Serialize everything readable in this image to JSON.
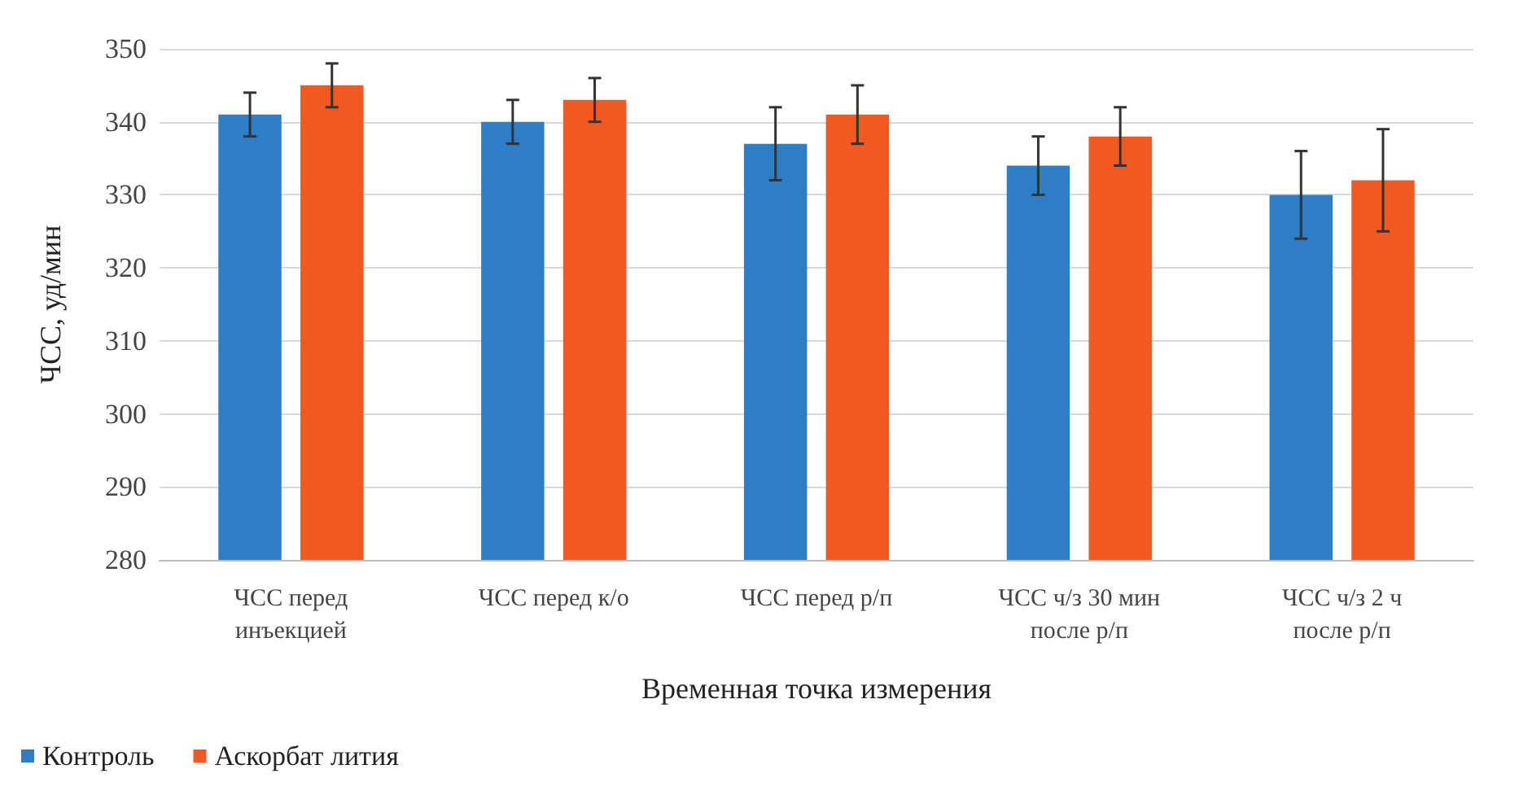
{
  "chart_data": {
    "type": "bar",
    "xlabel": "Временная точка измерения",
    "ylabel": "ЧСС, уд/мин",
    "categories": [
      "ЧСС перед инъекцией",
      "ЧСС перед к/о",
      "ЧСС перед р/п",
      "ЧСС ч/з 30 мин после р/п",
      "ЧСС ч/з 2 ч после р/п"
    ],
    "series": [
      {
        "name": "Контроль",
        "color": "#2e7ec6",
        "values": [
          341,
          340,
          337,
          334,
          330
        ],
        "errors": [
          3,
          3,
          5,
          4,
          6
        ]
      },
      {
        "name": "Аскорбат лития",
        "color": "#f05a22",
        "values": [
          345,
          343,
          341,
          338,
          332
        ],
        "errors": [
          3,
          3,
          4,
          4,
          7
        ]
      }
    ],
    "ylim": [
      280,
      350
    ],
    "yticks": [
      280,
      290,
      300,
      310,
      320,
      330,
      340,
      350
    ],
    "grid": "y",
    "legend": "bottom left"
  }
}
